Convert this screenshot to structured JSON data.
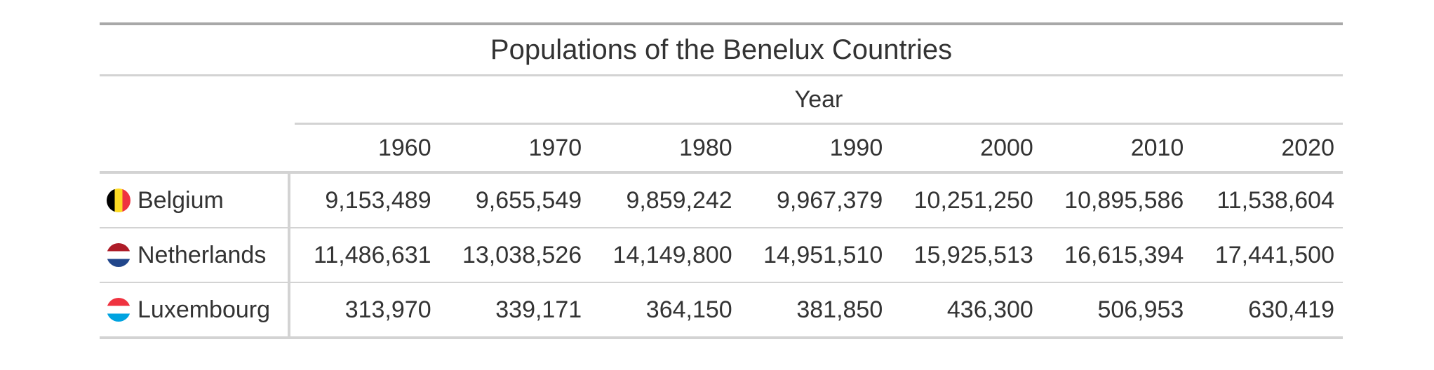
{
  "table": {
    "title": "Populations of the Benelux Countries",
    "spanner_label": "Year",
    "years": [
      "1960",
      "1970",
      "1980",
      "1990",
      "2000",
      "2010",
      "2020"
    ],
    "rows": [
      {
        "country": "Belgium",
        "flag_icon": "belgium-flag-icon",
        "flag_colors": [
          "#000000",
          "#FDDA24",
          "#EF3340"
        ],
        "flag_orientation": "vertical",
        "values": [
          "9,153,489",
          "9,655,549",
          "9,859,242",
          "9,967,379",
          "10,251,250",
          "10,895,586",
          "11,538,604"
        ]
      },
      {
        "country": "Netherlands",
        "flag_icon": "netherlands-flag-icon",
        "flag_colors": [
          "#AE1C28",
          "#FFFFFF",
          "#21468B"
        ],
        "flag_orientation": "horizontal",
        "values": [
          "11,486,631",
          "13,038,526",
          "14,149,800",
          "14,951,510",
          "15,925,513",
          "16,615,394",
          "17,441,500"
        ]
      },
      {
        "country": "Luxembourg",
        "flag_icon": "luxembourg-flag-icon",
        "flag_colors": [
          "#EF3340",
          "#FFFFFF",
          "#00A3E0"
        ],
        "flag_orientation": "horizontal",
        "values": [
          "313,970",
          "339,171",
          "364,150",
          "381,850",
          "436,300",
          "506,953",
          "630,419"
        ]
      }
    ]
  }
}
